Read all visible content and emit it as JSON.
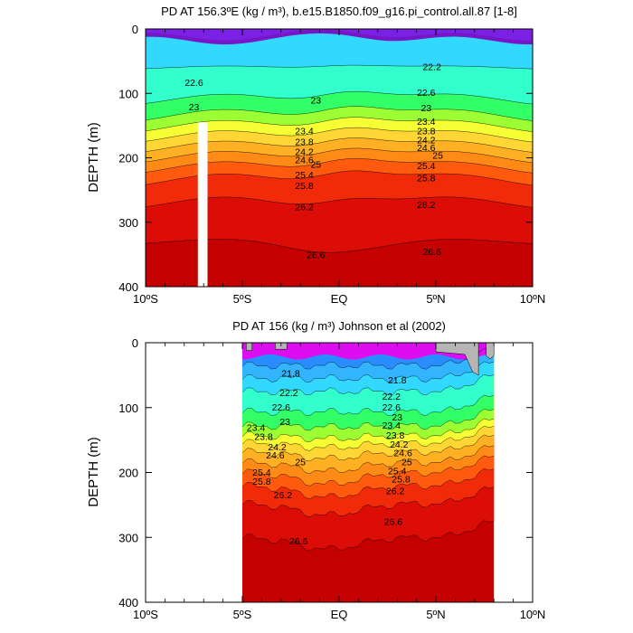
{
  "chart_data": [
    {
      "type": "contour",
      "title": "PD AT 156.3ºE (kg / m³), b.e15.B1850.f09_g16.pi_control.all.87 [1-8]",
      "ylabel": "DEPTH (m)",
      "xlabel": "",
      "xlim": [
        -10,
        10
      ],
      "ylim": [
        400,
        0
      ],
      "xticks": [
        -10,
        -5,
        0,
        5,
        10
      ],
      "xtick_labels": [
        "10ºS",
        "5ºS",
        "EQ",
        "5ºN",
        "10ºN"
      ],
      "yticks": [
        0,
        100,
        200,
        300,
        400
      ],
      "ytick_labels": [
        "0",
        "100",
        "200",
        "300",
        "400"
      ],
      "data_x_range": [
        -10,
        10
      ],
      "missing_column": {
        "x": [
          -7.3,
          -6.8
        ],
        "depth_range": [
          145,
          400
        ]
      },
      "depth_samples": [
        0,
        25,
        40,
        60,
        80,
        100,
        120,
        140,
        160,
        180,
        200,
        220,
        240,
        260,
        280,
        300,
        330,
        360,
        400
      ],
      "potential_density_at_equator": [
        22.4,
        22.45,
        22.5,
        22.6,
        22.75,
        22.9,
        23.1,
        23.5,
        24.0,
        24.5,
        25.0,
        25.5,
        25.9,
        26.1,
        26.3,
        26.45,
        26.6,
        26.7,
        26.8
      ],
      "contour_levels": [
        21.8,
        22.2,
        22.6,
        23,
        23.4,
        23.8,
        24.2,
        24.6,
        25,
        25.4,
        25.8,
        26.2,
        26.6
      ],
      "contour_labels": [
        {
          "text": "22.6",
          "x": -7.5,
          "depth": 83
        },
        {
          "text": "23",
          "x": -7.5,
          "depth": 121
        },
        {
          "text": "23",
          "x": -1.2,
          "depth": 110
        },
        {
          "text": "23.4",
          "x": -1.8,
          "depth": 158
        },
        {
          "text": "23.8",
          "x": -1.8,
          "depth": 175
        },
        {
          "text": "24.2",
          "x": -1.8,
          "depth": 190
        },
        {
          "text": "24.6",
          "x": -1.8,
          "depth": 203
        },
        {
          "text": "25",
          "x": -1.2,
          "depth": 210
        },
        {
          "text": "25.4",
          "x": -1.8,
          "depth": 226
        },
        {
          "text": "25.8",
          "x": -1.8,
          "depth": 243
        },
        {
          "text": "26.2",
          "x": -1.8,
          "depth": 276
        },
        {
          "text": "26.6",
          "x": -1.2,
          "depth": 350
        },
        {
          "text": "22.2",
          "x": 4.8,
          "depth": 58
        },
        {
          "text": "22.6",
          "x": 4.5,
          "depth": 98
        },
        {
          "text": "23",
          "x": 4.5,
          "depth": 122
        },
        {
          "text": "23.4",
          "x": 4.5,
          "depth": 143
        },
        {
          "text": "23.8",
          "x": 4.5,
          "depth": 158
        },
        {
          "text": "24.2",
          "x": 4.5,
          "depth": 172
        },
        {
          "text": "24.6",
          "x": 4.5,
          "depth": 184
        },
        {
          "text": "25",
          "x": 5.1,
          "depth": 196
        },
        {
          "text": "25.4",
          "x": 4.5,
          "depth": 212
        },
        {
          "text": "25.8",
          "x": 4.5,
          "depth": 231
        },
        {
          "text": "26.2",
          "x": 4.5,
          "depth": 272
        },
        {
          "text": "26.6",
          "x": 4.8,
          "depth": 345
        }
      ]
    },
    {
      "type": "contour",
      "title": "PD AT 156 (kg / m³) Johnson et al (2002)",
      "ylabel": "DEPTH (m)",
      "xlabel": "",
      "xlim": [
        -10,
        10
      ],
      "ylim": [
        400,
        0
      ],
      "xticks": [
        -10,
        -5,
        0,
        5,
        10
      ],
      "xtick_labels": [
        "10ºS",
        "5ºS",
        "EQ",
        "5ºN",
        "10ºN"
      ],
      "yticks": [
        0,
        100,
        200,
        300,
        400
      ],
      "ytick_labels": [
        "0",
        "100",
        "200",
        "300",
        "400"
      ],
      "data_x_range": [
        -5,
        8
      ],
      "depth_samples": [
        0,
        25,
        40,
        60,
        80,
        100,
        120,
        140,
        160,
        180,
        200,
        220,
        240,
        260,
        280,
        300,
        330,
        360,
        400
      ],
      "potential_density_at_equator": [
        21.3,
        21.6,
        21.9,
        22.3,
        22.7,
        22.9,
        23.2,
        23.7,
        24.4,
        24.9,
        25.4,
        25.8,
        26.1,
        26.35,
        26.5,
        26.6,
        26.7,
        26.8,
        26.9
      ],
      "contour_levels": [
        21.8,
        22.2,
        22.6,
        23,
        23.4,
        23.8,
        24.2,
        24.6,
        25,
        25.4,
        25.8,
        26.2,
        26.6
      ],
      "contour_labels": [
        {
          "text": "21.8",
          "x": -2.5,
          "depth": 47
        },
        {
          "text": "22.2",
          "x": -2.6,
          "depth": 77
        },
        {
          "text": "22.6",
          "x": -3.0,
          "depth": 99
        },
        {
          "text": "23",
          "x": -2.8,
          "depth": 121
        },
        {
          "text": "23.4",
          "x": -4.3,
          "depth": 130
        },
        {
          "text": "23.8",
          "x": -3.9,
          "depth": 144
        },
        {
          "text": "24.2",
          "x": -3.2,
          "depth": 160
        },
        {
          "text": "24.6",
          "x": -3.3,
          "depth": 173
        },
        {
          "text": "25",
          "x": -2.0,
          "depth": 183
        },
        {
          "text": "25.4",
          "x": -4.0,
          "depth": 199
        },
        {
          "text": "25.8",
          "x": -4.0,
          "depth": 213
        },
        {
          "text": "26.2",
          "x": -2.9,
          "depth": 234
        },
        {
          "text": "26.6",
          "x": -2.1,
          "depth": 305
        },
        {
          "text": "21.8",
          "x": 3.0,
          "depth": 57
        },
        {
          "text": "22.2",
          "x": 2.7,
          "depth": 82
        },
        {
          "text": "22.6",
          "x": 2.7,
          "depth": 99
        },
        {
          "text": "23",
          "x": 3.0,
          "depth": 114
        },
        {
          "text": "23.4",
          "x": 2.7,
          "depth": 127
        },
        {
          "text": "23.8",
          "x": 2.9,
          "depth": 142
        },
        {
          "text": "24.2",
          "x": 3.1,
          "depth": 156
        },
        {
          "text": "24.6",
          "x": 3.3,
          "depth": 169
        },
        {
          "text": "25",
          "x": 3.5,
          "depth": 183
        },
        {
          "text": "25.4",
          "x": 3.0,
          "depth": 197
        },
        {
          "text": "25.8",
          "x": 3.2,
          "depth": 210
        },
        {
          "text": "26.2",
          "x": 2.9,
          "depth": 228
        },
        {
          "text": "26.6",
          "x": 2.8,
          "depth": 275
        }
      ]
    }
  ],
  "colors": {
    "levels": [
      "#8000c0",
      "#7a22e8",
      "#0033ff",
      "#1b66ff",
      "#2a8dff",
      "#33b4ff",
      "#33d8ff",
      "#33ffcc",
      "#33ff66",
      "#9bff33",
      "#f5ff33",
      "#ffd633",
      "#ffb023",
      "#ff8a16",
      "#ff5a0e",
      "#f12a0a",
      "#dc0d06",
      "#c40000"
    ],
    "observed_top": "#f000f0",
    "missing": "#b5b5b5",
    "blank": "#ffffff"
  }
}
